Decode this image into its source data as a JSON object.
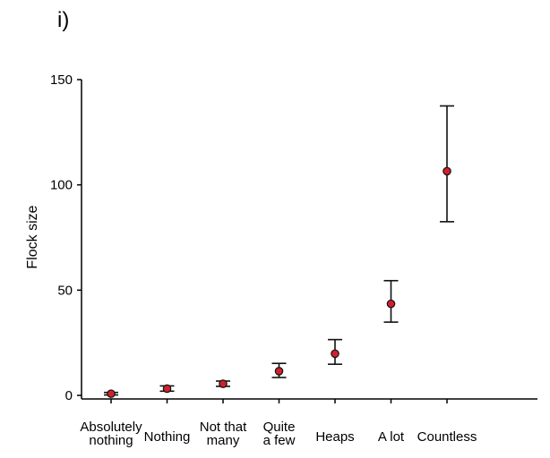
{
  "panel_label": "i)",
  "chart_data": {
    "type": "scatter",
    "title": "",
    "xlabel": "",
    "ylabel": "Flock size",
    "ylim": [
      0,
      150
    ],
    "yticks": [
      "0",
      "50",
      "100",
      "150"
    ],
    "grid": false,
    "categories": [
      [
        "Absolutely",
        "nothing"
      ],
      [
        "Nothing"
      ],
      [
        "Not that",
        "many"
      ],
      [
        "Quite",
        "a few"
      ],
      [
        "Heaps"
      ],
      [
        "A lot"
      ],
      [
        "Countless"
      ]
    ],
    "series": [
      {
        "values": [
          0.8,
          3.2,
          5.5,
          11.5,
          19.8,
          43.5,
          106.5
        ],
        "lower": [
          0.2,
          2.0,
          4.3,
          8.5,
          14.8,
          34.8,
          82.5
        ],
        "upper": [
          1.4,
          4.5,
          6.8,
          15.2,
          26.5,
          54.5,
          137.5
        ]
      }
    ],
    "colors": {
      "marker_fill": "#d0202e",
      "marker_stroke": "#111111",
      "axis": "#000000"
    }
  }
}
